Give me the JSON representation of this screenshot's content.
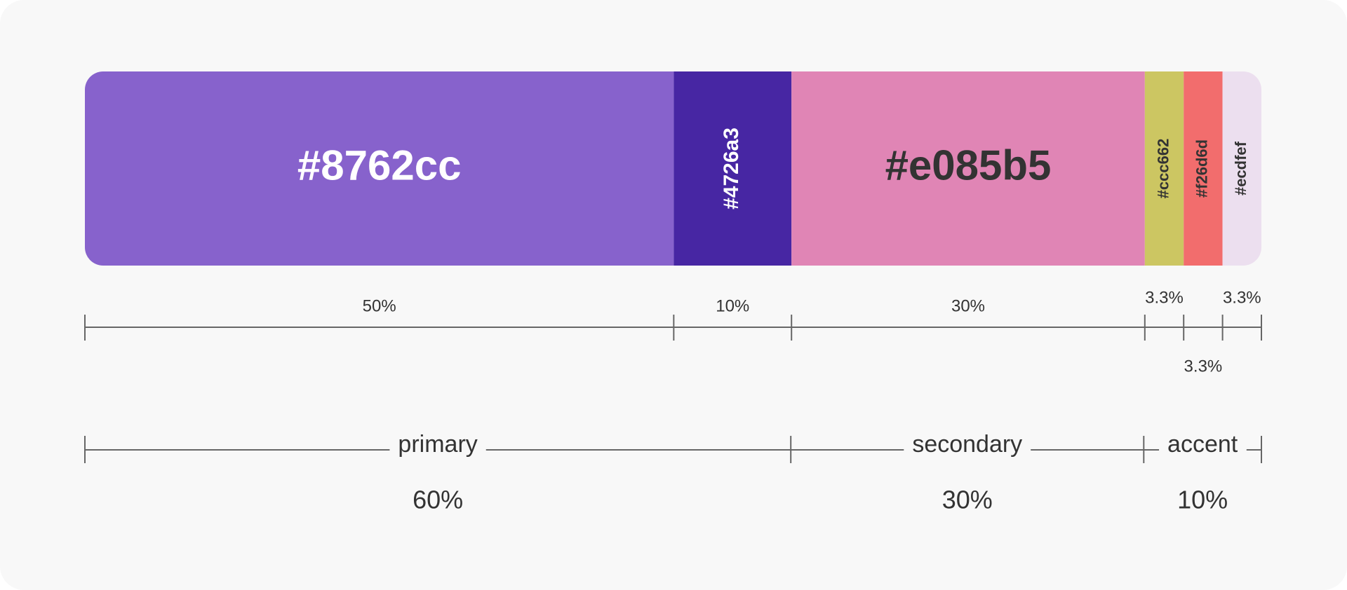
{
  "chart_data": {
    "type": "stacked-bar",
    "categories": [
      "#8762cc",
      "#4726a3",
      "#e085b5",
      "#ccc662",
      "#f26d6d",
      "#ecdfef"
    ],
    "colors": [
      "#8762cc",
      "#4726a3",
      "#e085b5",
      "#ccc662",
      "#f26d6d",
      "#ecdfef"
    ],
    "values": [
      50,
      10,
      30,
      3.3,
      3.3,
      3.3
    ],
    "value_labels": [
      "50%",
      "10%",
      "30%",
      "3.3%",
      "3.3%",
      "3.3%"
    ],
    "groups": {
      "categories": [
        "primary",
        "secondary",
        "accent"
      ],
      "values": [
        60,
        30,
        10
      ],
      "value_labels": [
        "60%",
        "30%",
        "10%"
      ]
    }
  }
}
